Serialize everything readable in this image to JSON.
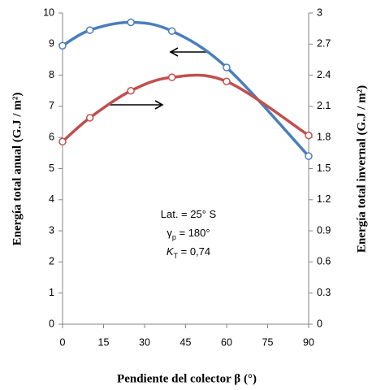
{
  "chart_data": {
    "type": "line",
    "x": [
      0,
      10,
      25,
      40,
      60,
      90
    ],
    "xlim": [
      0,
      90
    ],
    "xticks": [
      0,
      15,
      30,
      45,
      60,
      75,
      90
    ],
    "ylim": [
      0,
      10
    ],
    "yticks": [
      0,
      1,
      2,
      3,
      4,
      5,
      6,
      7,
      8,
      9,
      10
    ],
    "y2lim": [
      0,
      3
    ],
    "y2ticks": [
      0,
      0.3,
      0.6,
      0.9,
      1.2,
      1.5,
      1.8,
      2.1,
      2.4,
      2.7,
      3
    ],
    "xlabel": "Pendiente del colector β (°)",
    "ylabel": "Energía total  anual (G.J / m²)",
    "y2label": "Energía total  invernal (G.J / m²)",
    "annotations": [
      [
        "Lat. = 25° S"
      ],
      [
        "γ",
        "p",
        " = 180°"
      ],
      [
        "K",
        "T",
        " = 0,74"
      ]
    ],
    "series": [
      {
        "color": "#4a7ebb",
        "values": [
          8.95,
          9.45,
          9.7,
          9.42,
          8.25,
          5.4
        ]
      },
      {
        "color": "#c0504d",
        "axis": "y2",
        "values": [
          1.76,
          1.99,
          2.25,
          2.38,
          2.34,
          1.82
        ]
      }
    ]
  }
}
